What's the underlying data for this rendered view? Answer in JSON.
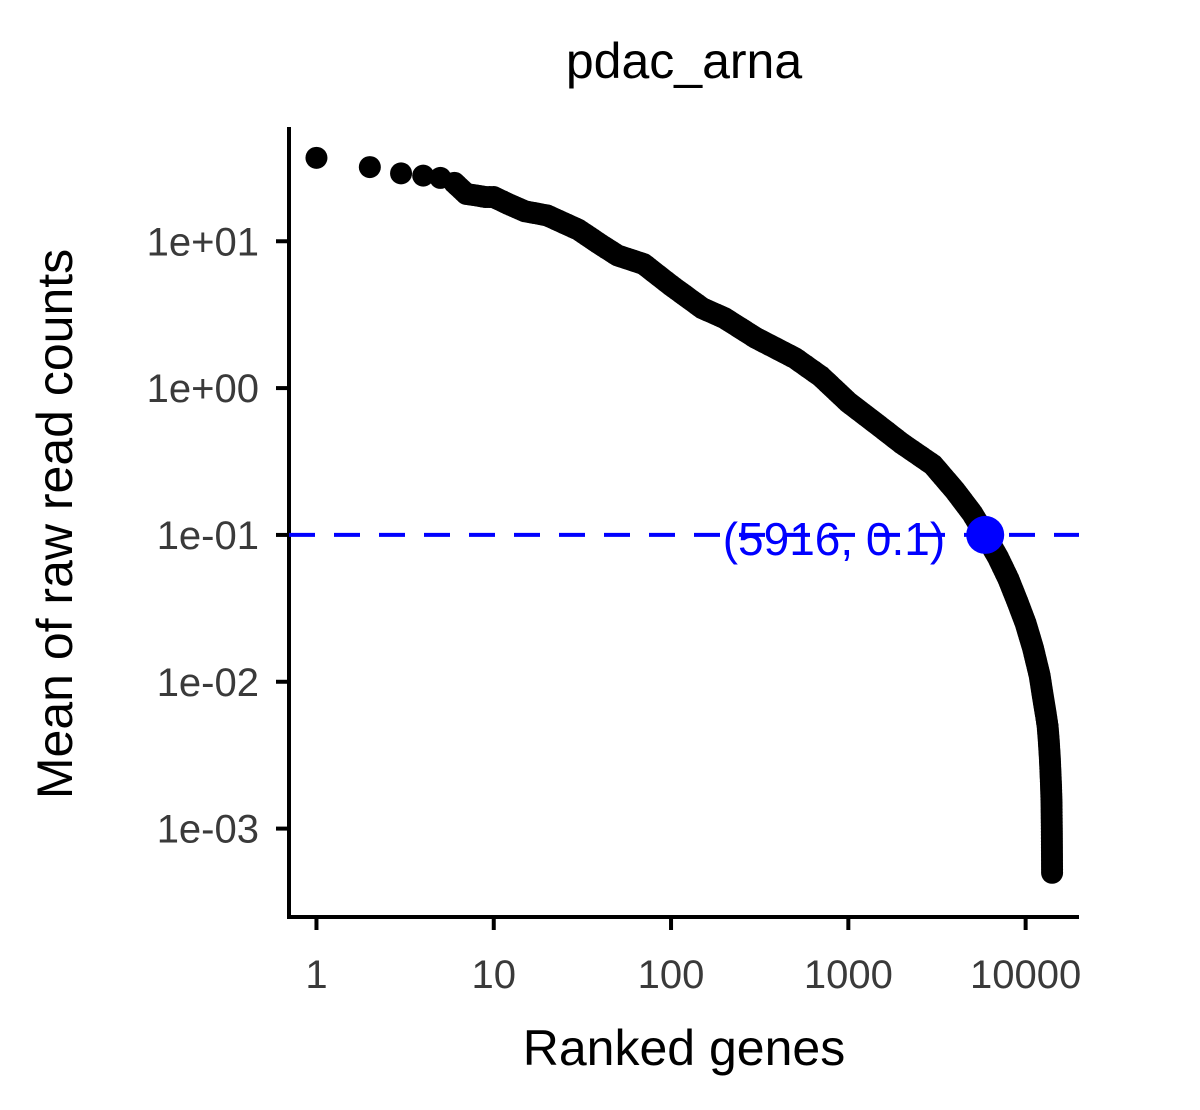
{
  "chart_data": {
    "type": "scatter",
    "title": "pdac_arna",
    "xlabel": "Ranked genes",
    "ylabel": "Mean of raw read counts",
    "x_scale": "log10",
    "y_scale": "log10",
    "xlim": [
      0.7,
      20000
    ],
    "ylim": [
      0.00025,
      60
    ],
    "x_ticks": [
      1,
      10,
      100,
      1000,
      10000
    ],
    "x_tick_labels": [
      "1",
      "10",
      "100",
      "1000",
      "10000"
    ],
    "y_ticks": [
      0.001,
      0.01,
      0.1,
      1,
      10
    ],
    "y_tick_labels": [
      "1e-03",
      "1e-02",
      "1e-01",
      "1e+00",
      "1e+01"
    ],
    "grid": false,
    "legend": "none",
    "series": [
      {
        "color": "#000000",
        "points": [
          [
            1,
            37
          ],
          [
            2,
            32
          ],
          [
            3,
            29
          ],
          [
            4,
            28
          ],
          [
            5,
            27
          ],
          [
            6,
            25
          ],
          [
            7,
            21
          ],
          [
            8,
            20.5
          ],
          [
            9,
            20
          ],
          [
            10,
            20
          ],
          [
            12,
            18
          ],
          [
            15,
            16
          ],
          [
            20,
            15
          ],
          [
            30,
            12
          ],
          [
            40,
            9.5
          ],
          [
            50,
            8
          ],
          [
            70,
            7
          ],
          [
            100,
            5
          ],
          [
            150,
            3.5
          ],
          [
            200,
            3
          ],
          [
            300,
            2.2
          ],
          [
            500,
            1.6
          ],
          [
            700,
            1.2
          ],
          [
            1000,
            0.8
          ],
          [
            1500,
            0.55
          ],
          [
            2000,
            0.42
          ],
          [
            3000,
            0.3
          ],
          [
            4000,
            0.2
          ],
          [
            5000,
            0.14
          ],
          [
            5916,
            0.1
          ],
          [
            7000,
            0.07
          ],
          [
            8000,
            0.05
          ],
          [
            9000,
            0.035
          ],
          [
            10000,
            0.025
          ],
          [
            11000,
            0.017
          ],
          [
            12000,
            0.011
          ],
          [
            12500,
            0.008
          ],
          [
            13000,
            0.006
          ],
          [
            13300,
            0.005
          ],
          [
            13500,
            0.004
          ],
          [
            13700,
            0.003
          ],
          [
            13900,
            0.002
          ],
          [
            14000,
            0.0015
          ],
          [
            14050,
            0.001
          ],
          [
            14100,
            0.0005
          ]
        ]
      }
    ],
    "threshold": {
      "y": 0.1,
      "color": "#0000ff",
      "style": "dashed",
      "highlight_point": [
        5916,
        0.1
      ],
      "label": "(5916, 0.1)"
    }
  }
}
